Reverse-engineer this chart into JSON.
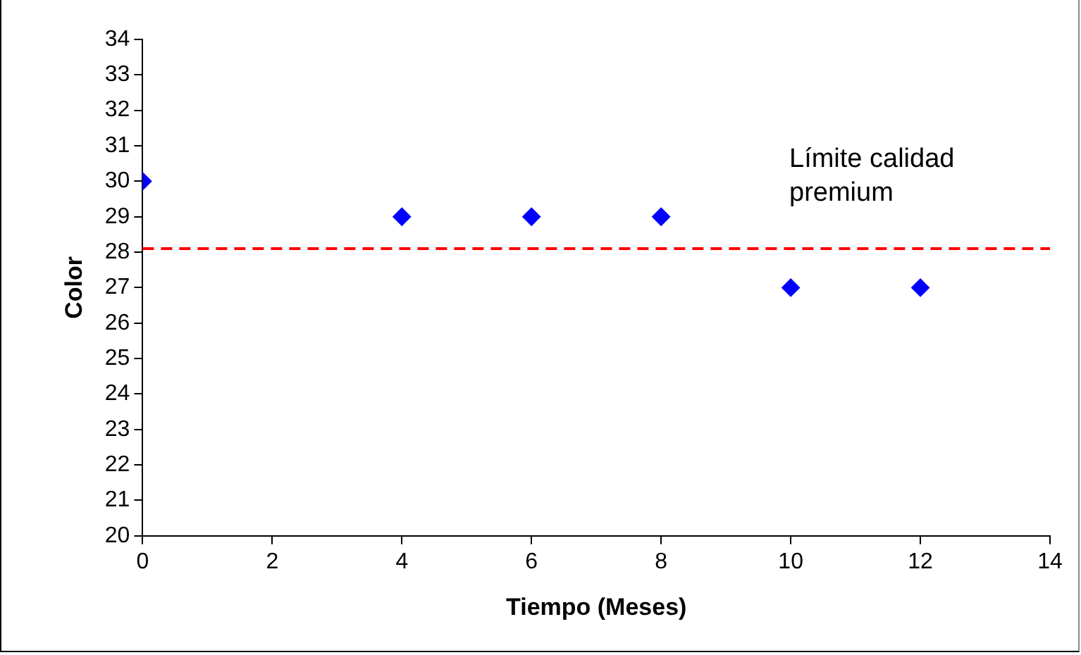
{
  "chart_data": {
    "type": "scatter",
    "xlabel": "Tiempo (Meses)",
    "ylabel": "Color",
    "x": [
      0,
      4,
      6,
      8,
      10,
      12
    ],
    "series": [
      {
        "color": "#0000ff",
        "values": [
          30,
          29,
          29,
          29,
          27,
          27
        ]
      }
    ],
    "xlim": [
      0,
      14
    ],
    "xticks": [
      0,
      2,
      4,
      6,
      8,
      10,
      12,
      14
    ],
    "ylim": [
      20,
      34
    ],
    "yticks": [
      20,
      21,
      22,
      23,
      24,
      25,
      26,
      27,
      28,
      29,
      30,
      31,
      32,
      33,
      34
    ],
    "ref_lines": [
      {
        "axis": "y",
        "value": 28.1,
        "label": "Límite calidad premium",
        "color": "#ff0000",
        "line_style": "dashed"
      }
    ],
    "grid": false,
    "legend": false,
    "marker": "diamond"
  }
}
